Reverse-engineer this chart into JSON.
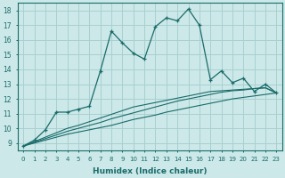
{
  "xlabel": "Humidex (Indice chaleur)",
  "background_color": "#cce8e8",
  "grid_color": "#a8d0d0",
  "line_color": "#1a6b6b",
  "x_values": [
    0,
    1,
    2,
    3,
    4,
    5,
    6,
    7,
    8,
    9,
    10,
    11,
    12,
    13,
    14,
    15,
    16,
    17,
    18,
    19,
    20,
    21,
    22,
    23
  ],
  "series1": [
    8.8,
    9.2,
    9.9,
    11.1,
    11.1,
    11.3,
    11.5,
    13.9,
    16.6,
    15.8,
    15.1,
    14.7,
    16.9,
    17.5,
    17.3,
    18.1,
    17.0,
    13.3,
    13.9,
    13.1,
    13.4,
    12.5,
    13.0,
    12.4
  ],
  "linear1": [
    8.8,
    9.0,
    9.2,
    9.4,
    9.6,
    9.75,
    9.9,
    10.05,
    10.2,
    10.4,
    10.6,
    10.75,
    10.9,
    11.1,
    11.25,
    11.4,
    11.55,
    11.7,
    11.85,
    12.0,
    12.1,
    12.2,
    12.3,
    12.4
  ],
  "linear2": [
    8.8,
    9.05,
    9.3,
    9.55,
    9.8,
    10.0,
    10.2,
    10.4,
    10.65,
    10.85,
    11.05,
    11.25,
    11.45,
    11.65,
    11.85,
    12.0,
    12.15,
    12.3,
    12.45,
    12.55,
    12.6,
    12.7,
    12.75,
    12.4
  ],
  "linear3": [
    8.8,
    9.1,
    9.4,
    9.7,
    10.0,
    10.2,
    10.45,
    10.7,
    10.95,
    11.2,
    11.45,
    11.6,
    11.75,
    11.9,
    12.05,
    12.2,
    12.35,
    12.5,
    12.55,
    12.6,
    12.65,
    12.7,
    12.75,
    12.4
  ],
  "ylim": [
    8.5,
    18.5
  ],
  "yticks": [
    9,
    10,
    11,
    12,
    13,
    14,
    15,
    16,
    17,
    18
  ],
  "xticks": [
    0,
    1,
    2,
    3,
    4,
    5,
    6,
    7,
    8,
    9,
    10,
    11,
    12,
    13,
    14,
    15,
    16,
    17,
    18,
    19,
    20,
    21,
    22,
    23
  ]
}
